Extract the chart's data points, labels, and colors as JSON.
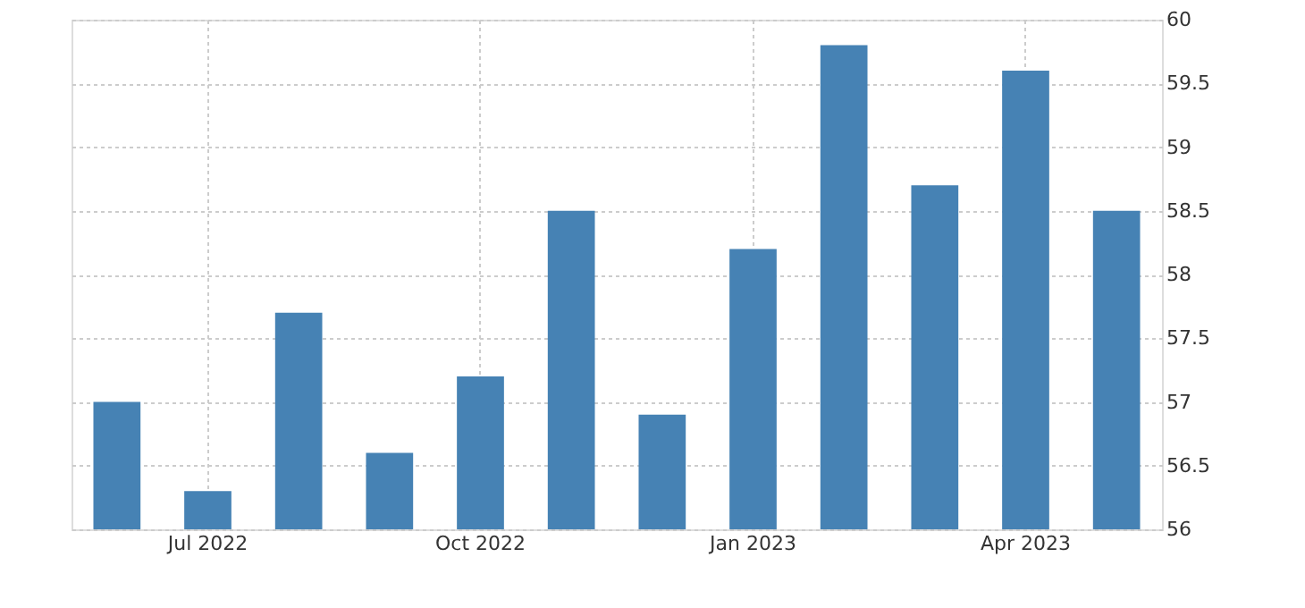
{
  "chart_data": {
    "type": "bar",
    "categories": [
      null,
      "Jul 2022",
      null,
      null,
      "Oct 2022",
      null,
      null,
      "Jan 2023",
      null,
      null,
      "Apr 2023",
      null
    ],
    "values": [
      57,
      56.3,
      57.7,
      56.6,
      57.2,
      58.5,
      56.9,
      58.2,
      59.8,
      58.7,
      59.6,
      58.5
    ],
    "color": "#4682b4",
    "ylim": [
      56,
      60
    ],
    "yticks": [
      56,
      56.5,
      57,
      57.5,
      58,
      58.5,
      59,
      59.5,
      60
    ],
    "grid": true
  }
}
